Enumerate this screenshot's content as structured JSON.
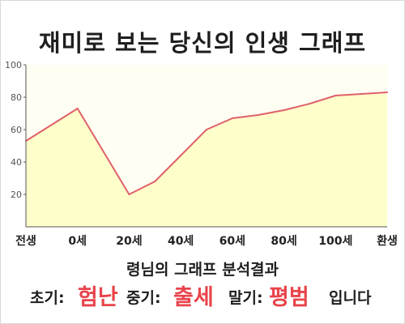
{
  "title": "재미로 보는 당신의 인생 그래프",
  "subtitle": "령님의 그래프 분석결과",
  "results": {
    "early_label": "초기:",
    "early_value": "험난",
    "middle_label": "중기:",
    "middle_value": "출세",
    "late_label": "말기:",
    "late_value": "평범",
    "ending": "입니다"
  },
  "colors": {
    "line": "#e0606a",
    "fill": "#fefecb",
    "plot_bg": "#fefef2",
    "accent": "#e8434a"
  },
  "chart_data": {
    "type": "area",
    "title": "재미로 보는 당신의 인생 그래프",
    "xlabel": "",
    "ylabel": "",
    "x_ticks": [
      "전생",
      "0세",
      "20세",
      "40세",
      "60세",
      "80세",
      "100세",
      "환생"
    ],
    "x": [
      -20,
      0,
      20,
      30,
      40,
      50,
      60,
      70,
      80,
      90,
      100,
      110,
      120
    ],
    "series": [
      {
        "values": [
          53,
          73,
          20,
          28,
          44,
          60,
          67,
          69,
          72,
          76,
          81,
          82,
          83
        ]
      }
    ],
    "xlim": [
      -20,
      120
    ],
    "ylim": [
      0,
      100
    ],
    "y_ticks": [
      20,
      40,
      60,
      80,
      100
    ],
    "grid": false,
    "legend": "none"
  }
}
